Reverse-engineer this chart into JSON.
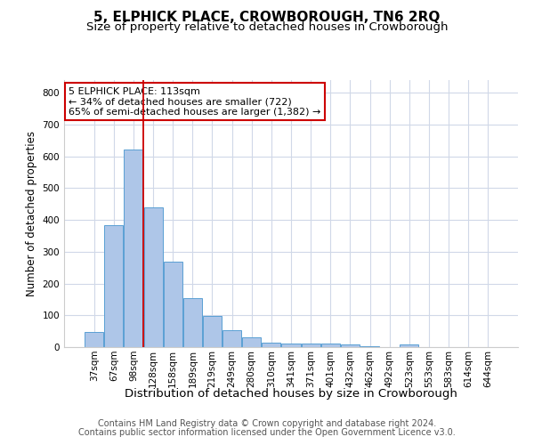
{
  "title": "5, ELPHICK PLACE, CROWBOROUGH, TN6 2RQ",
  "subtitle": "Size of property relative to detached houses in Crowborough",
  "xlabel": "Distribution of detached houses by size in Crowborough",
  "ylabel": "Number of detached properties",
  "bar_labels": [
    "37sqm",
    "67sqm",
    "98sqm",
    "128sqm",
    "158sqm",
    "189sqm",
    "219sqm",
    "249sqm",
    "280sqm",
    "310sqm",
    "341sqm",
    "371sqm",
    "401sqm",
    "432sqm",
    "462sqm",
    "492sqm",
    "523sqm",
    "553sqm",
    "583sqm",
    "614sqm",
    "644sqm"
  ],
  "bar_values": [
    48,
    383,
    622,
    440,
    268,
    155,
    97,
    53,
    30,
    15,
    11,
    12,
    10,
    8,
    4,
    0,
    8,
    0,
    0,
    0,
    0
  ],
  "bar_color": "#aec6e8",
  "bar_edge_color": "#5a9fd4",
  "background_color": "#ffffff",
  "grid_color": "#d0d8e8",
  "red_line_x": 2.5,
  "annotation_line1": "5 ELPHICK PLACE: 113sqm",
  "annotation_line2": "← 34% of detached houses are smaller (722)",
  "annotation_line3": "65% of semi-detached houses are larger (1,382) →",
  "annotation_box_color": "#ffffff",
  "annotation_box_edge_color": "#cc0000",
  "footer_line1": "Contains HM Land Registry data © Crown copyright and database right 2024.",
  "footer_line2": "Contains public sector information licensed under the Open Government Licence v3.0.",
  "ylim": [
    0,
    840
  ],
  "title_fontsize": 11,
  "subtitle_fontsize": 9.5,
  "xlabel_fontsize": 9.5,
  "ylabel_fontsize": 8.5,
  "tick_fontsize": 7.5,
  "annotation_fontsize": 8,
  "footer_fontsize": 7
}
